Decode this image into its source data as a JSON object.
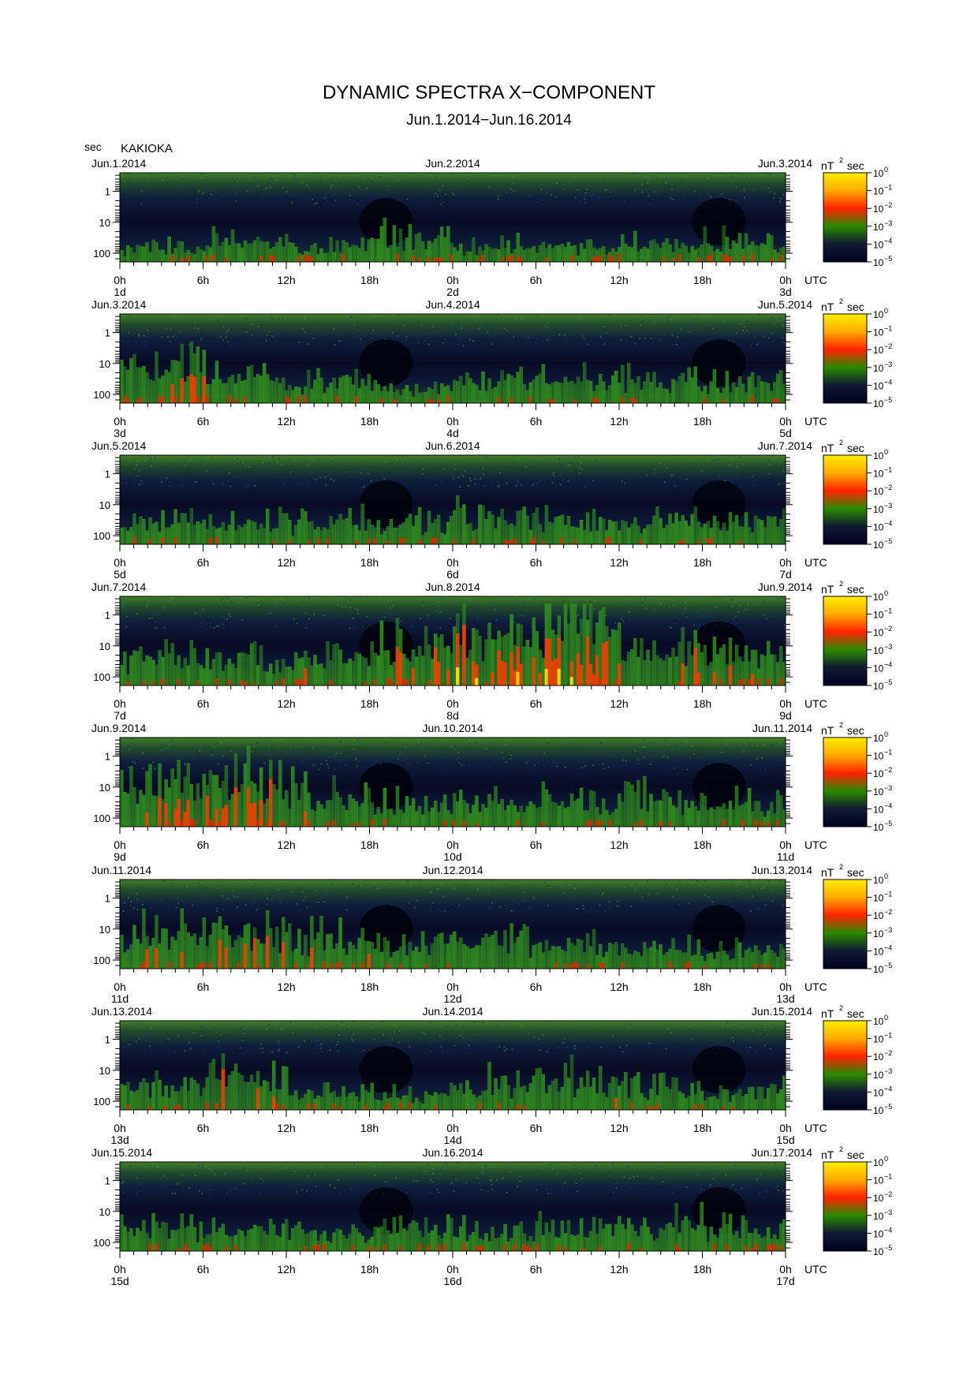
{
  "title": "DYNAMIC SPECTRA X−COMPONENT",
  "subtitle": "Jun.1.2014−Jun.16.2014",
  "y_unit": "sec",
  "station": "KAKIOKA",
  "time_unit_label": "UTC",
  "colorbar": {
    "unit": "nT",
    "unit_sup": "2",
    "unit_suffix": "sec",
    "tick_base": "10",
    "tick_exponents": [
      "0",
      "−1",
      "−2",
      "−3",
      "−4",
      "−5"
    ],
    "colors": [
      "#ffee00",
      "#ffaa00",
      "#ff2200",
      "#2a8a00",
      "#101a33",
      "#000020"
    ]
  },
  "chart_data": {
    "type": "heatmap",
    "description_variable": "X-component dynamic spectra",
    "y_scale": "log",
    "y_ticks": [
      "1",
      "10",
      "100"
    ],
    "x_ticks": [
      "0h",
      "6h",
      "12h",
      "18h",
      "0h",
      "6h",
      "12h",
      "18h",
      "0h"
    ],
    "panels": [
      {
        "left_date": "Jun.1.2014",
        "mid_date": "Jun.2.2014",
        "right_date": "Jun.3.2014",
        "day_labels": [
          "1d",
          "2d",
          "3d"
        ],
        "activity": [
          0.2,
          0.25,
          0.2,
          0.35,
          0.2,
          0.2,
          0.25,
          0.3
        ]
      },
      {
        "left_date": "Jun.3.2014",
        "mid_date": "Jun.4.2014",
        "right_date": "Jun.5.2014",
        "day_labels": [
          "3d",
          "4d",
          "5d"
        ],
        "activity": [
          0.45,
          0.35,
          0.25,
          0.2,
          0.3,
          0.3,
          0.3,
          0.25
        ]
      },
      {
        "left_date": "Jun.5.2014",
        "mid_date": "Jun.6.2014",
        "right_date": "Jun.7.2014",
        "day_labels": [
          "5d",
          "6d",
          "7d"
        ],
        "activity": [
          0.3,
          0.3,
          0.3,
          0.3,
          0.35,
          0.3,
          0.3,
          0.3
        ]
      },
      {
        "left_date": "Jun.7.2014",
        "mid_date": "Jun.8.2014",
        "right_date": "Jun.9.2014",
        "day_labels": [
          "7d",
          "8d",
          "9d"
        ],
        "activity": [
          0.35,
          0.35,
          0.4,
          0.5,
          0.7,
          0.85,
          0.55,
          0.45
        ]
      },
      {
        "left_date": "Jun.9.2014",
        "mid_date": "Jun.10.2014",
        "right_date": "Jun.11.2014",
        "day_labels": [
          "9d",
          "10d",
          "11d"
        ],
        "activity": [
          0.55,
          0.6,
          0.45,
          0.3,
          0.3,
          0.35,
          0.35,
          0.3
        ]
      },
      {
        "left_date": "Jun.11.2014",
        "mid_date": "Jun.12.2014",
        "right_date": "Jun.13.2014",
        "day_labels": [
          "11d",
          "12d",
          "13d"
        ],
        "activity": [
          0.45,
          0.45,
          0.4,
          0.35,
          0.35,
          0.3,
          0.3,
          0.25
        ]
      },
      {
        "left_date": "Jun.13.2014",
        "mid_date": "Jun.14.2014",
        "right_date": "Jun.15.2014",
        "day_labels": [
          "13d",
          "14d",
          "15d"
        ],
        "activity": [
          0.3,
          0.4,
          0.25,
          0.2,
          0.35,
          0.4,
          0.3,
          0.25
        ]
      },
      {
        "left_date": "Jun.15.2014",
        "mid_date": "Jun.16.2014",
        "right_date": "Jun.17.2014",
        "day_labels": [
          "15d",
          "16d",
          "17d"
        ],
        "activity": [
          0.3,
          0.25,
          0.25,
          0.3,
          0.25,
          0.3,
          0.35,
          0.3
        ]
      }
    ]
  }
}
